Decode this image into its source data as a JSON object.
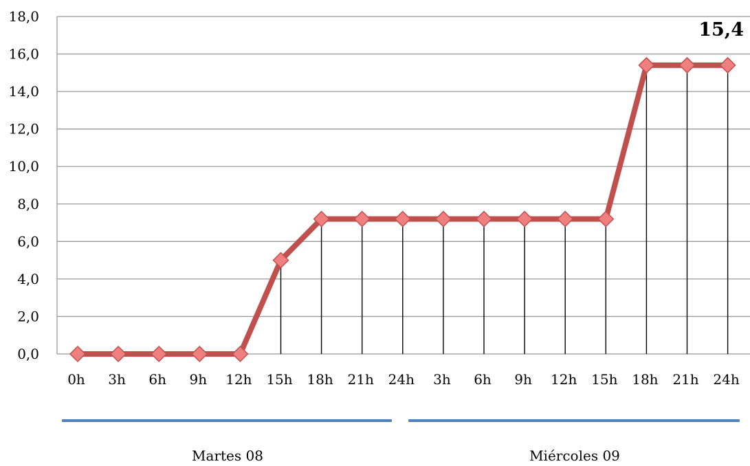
{
  "chart_data": {
    "type": "line",
    "title": "",
    "xlabel": "",
    "ylabel": "",
    "ylim": [
      0,
      18
    ],
    "yticks": [
      "0,0",
      "2,0",
      "4,0",
      "6,0",
      "8,0",
      "10,0",
      "12,0",
      "14,0",
      "16,0",
      "18,0"
    ],
    "categories": [
      "0h",
      "3h",
      "6h",
      "9h",
      "12h",
      "15h",
      "18h",
      "21h",
      "24h",
      "3h",
      "6h",
      "9h",
      "12h",
      "15h",
      "18h",
      "21h",
      "24h"
    ],
    "series": [
      {
        "values": [
          0,
          0,
          0,
          0,
          0,
          5.0,
          7.2,
          7.2,
          7.2,
          7.2,
          7.2,
          7.2,
          7.2,
          7.2,
          15.4,
          15.4,
          15.4
        ],
        "color": "#C0504D",
        "marker_color": "#F08080"
      }
    ],
    "drop_lines": true,
    "grid": true,
    "annotation": "15,4",
    "groups": [
      {
        "label": "Martes 08"
      },
      {
        "label": "Miércoles 09"
      }
    ],
    "colors": {
      "line": "#C0504D",
      "marker": "#F08080",
      "grid": "#999999",
      "group_bar": "#4F81BD"
    }
  }
}
